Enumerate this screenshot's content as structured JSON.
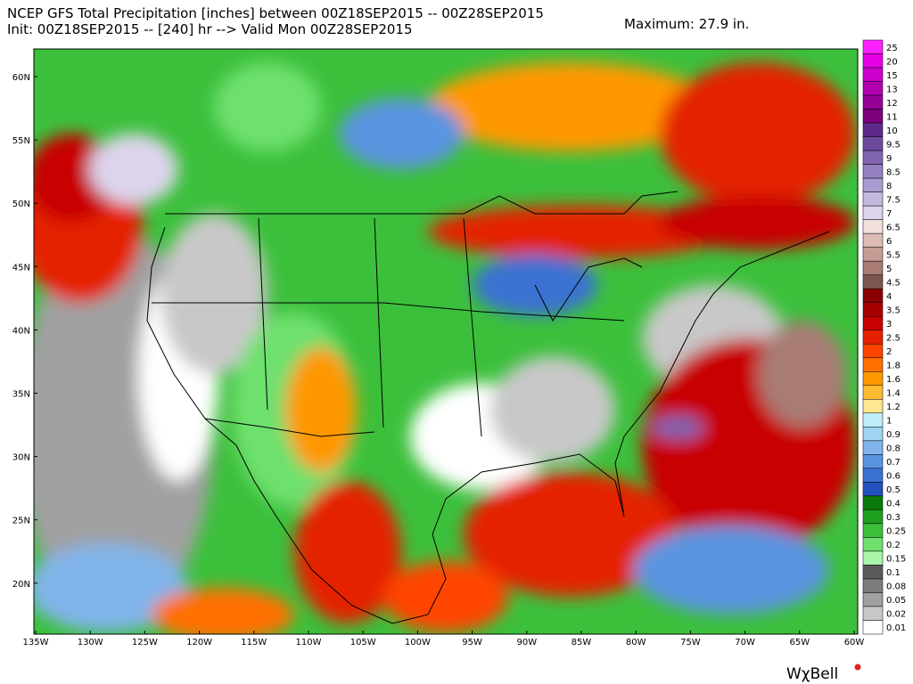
{
  "header": {
    "title_line1": "NCEP GFS Total Precipitation [inches] between 00Z18SEP2015 -- 00Z28SEP2015",
    "title_line2": "Init: 00Z18SEP2015 -- [240] hr --> Valid Mon 00Z28SEP2015",
    "maximum": "Maximum: 27.9 in."
  },
  "colorbar": {
    "labels": [
      "25",
      "20",
      "15",
      "13",
      "12",
      "11",
      "10",
      "9.5",
      "9",
      "8.5",
      "8",
      "7.5",
      "7",
      "6.5",
      "6",
      "5.5",
      "5",
      "4.5",
      "4",
      "3.5",
      "3",
      "2.5",
      "2",
      "1.8",
      "1.6",
      "1.4",
      "1.2",
      "1",
      "0.9",
      "0.8",
      "0.7",
      "0.6",
      "0.5",
      "0.4",
      "0.3",
      "0.25",
      "0.2",
      "0.15",
      "0.1",
      "0.08",
      "0.05",
      "0.02",
      "0.01"
    ],
    "colors": [
      "#ff22ff",
      "#e600e6",
      "#cc00cc",
      "#b000b0",
      "#960096",
      "#7c007c",
      "#5e2a8a",
      "#6e4a9e",
      "#8064b0",
      "#9580c0",
      "#aa9cd0",
      "#c4b8e0",
      "#ddd4ec",
      "#f2e0dc",
      "#dcbcb4",
      "#c49c94",
      "#a87c74",
      "#7c5450",
      "#8a0000",
      "#a80000",
      "#c80000",
      "#e42000",
      "#ff4400",
      "#ff7000",
      "#ff9800",
      "#ffbc30",
      "#ffe690",
      "#bfeefa",
      "#a0d4f4",
      "#80b4ea",
      "#5a94e0",
      "#3a72d2",
      "#2250bc",
      "#0a7a0a",
      "#1e9e1e",
      "#3cc03c",
      "#6ee06e",
      "#a8f4a8",
      "#5a5a5a",
      "#7c7c7c",
      "#a0a0a0",
      "#c8c8c8",
      "#ffffff"
    ]
  },
  "latitude_labels": [
    "60N",
    "55N",
    "50N",
    "45N",
    "40N",
    "35N",
    "30N",
    "25N",
    "20N"
  ],
  "longitude_labels": [
    "135W",
    "130W",
    "125W",
    "120W",
    "115W",
    "110W",
    "105W",
    "100W",
    "95W",
    "90W",
    "85W",
    "80W",
    "75W",
    "70W",
    "65W",
    "60W"
  ],
  "logo": "WχBell"
}
